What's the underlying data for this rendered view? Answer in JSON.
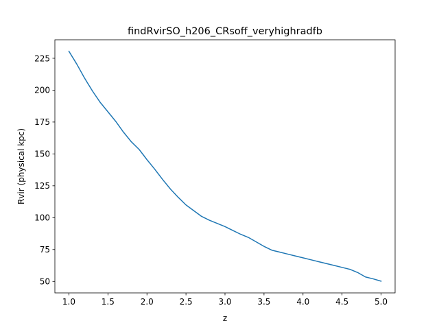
{
  "chart_data": {
    "type": "line",
    "title": "findRvirSO_h206_CRsoff_veryhighradfb",
    "xlabel": "z",
    "ylabel": "Rvir (physical kpc)",
    "xlim": [
      0.82,
      5.18
    ],
    "ylim": [
      41.0,
      239.5
    ],
    "xticks": [
      1.0,
      1.5,
      2.0,
      2.5,
      3.0,
      3.5,
      4.0,
      4.5,
      5.0
    ],
    "xtick_labels": [
      "1.0",
      "1.5",
      "2.0",
      "2.5",
      "3.0",
      "3.5",
      "4.0",
      "4.5",
      "5.0"
    ],
    "yticks": [
      50,
      75,
      100,
      125,
      150,
      175,
      200,
      225
    ],
    "ytick_labels": [
      "50",
      "75",
      "100",
      "125",
      "150",
      "175",
      "200",
      "225"
    ],
    "grid": false,
    "series": [
      {
        "color": "#1f77b4",
        "x": [
          1.0,
          1.1,
          1.2,
          1.3,
          1.4,
          1.5,
          1.6,
          1.7,
          1.8,
          1.9,
          2.0,
          2.1,
          2.2,
          2.3,
          2.4,
          2.5,
          2.6,
          2.7,
          2.8,
          2.9,
          3.0,
          3.1,
          3.2,
          3.3,
          3.4,
          3.5,
          3.6,
          3.7,
          3.8,
          3.9,
          4.0,
          4.1,
          4.2,
          4.3,
          4.4,
          4.5,
          4.6,
          4.7,
          4.8,
          4.9,
          5.0
        ],
        "y": [
          230.5,
          220.5,
          209.5,
          199.5,
          190.5,
          183.0,
          175.5,
          167.0,
          159.5,
          153.5,
          145.5,
          138.0,
          130.0,
          122.5,
          116.0,
          110.0,
          105.5,
          101.0,
          98.0,
          95.5,
          93.0,
          90.0,
          87.0,
          84.5,
          81.0,
          77.5,
          74.5,
          73.0,
          71.5,
          70.0,
          68.5,
          67.0,
          65.5,
          64.0,
          62.5,
          61.0,
          59.5,
          57.0,
          53.5,
          52.0,
          50.2
        ]
      }
    ]
  }
}
